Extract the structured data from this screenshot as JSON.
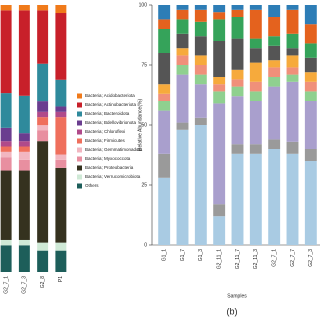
{
  "chart_data": [
    {
      "type": "stacked_bar",
      "categories": [
        "G2_7_1",
        "G2_7_3",
        "G2_8",
        "P1"
      ],
      "ylim": [
        0,
        100
      ],
      "series": [
        {
          "name": "Others",
          "color": "#1d5e5a",
          "values": [
            10,
            10,
            8,
            8
          ]
        },
        {
          "name": "Bacteria; Verrucomicrobiota",
          "color": "#cfe9d6",
          "values": [
            2,
            2,
            3,
            3
          ]
        },
        {
          "name": "Bacteria; Proteobacteria",
          "color": "#35321f",
          "values": [
            26,
            26,
            38,
            28
          ]
        },
        {
          "name": "Bacteria; Myxococcota",
          "color": "#e88fa0",
          "values": [
            5,
            4,
            4,
            3
          ]
        },
        {
          "name": "Bacteria; Gemmatimonadota",
          "color": "#f2b6c0",
          "values": [
            2,
            3,
            2,
            2
          ]
        },
        {
          "name": "Bacteria; Firmicutes",
          "color": "#ef6f5c",
          "values": [
            2,
            2,
            3,
            14
          ]
        },
        {
          "name": "Bacteria; Chloroflexi",
          "color": "#b04a8a",
          "values": [
            2,
            2,
            2,
            2
          ]
        },
        {
          "name": "Bacteria; Bdellovibrionota",
          "color": "#6a3d8f",
          "values": [
            5,
            3,
            4,
            2
          ]
        },
        {
          "name": "Bacteria; Bacteroidota",
          "color": "#2f8a9c",
          "values": [
            13,
            14,
            14,
            10
          ]
        },
        {
          "name": "Bacteria; Actinobacteriota",
          "color": "#c8202a",
          "values": [
            31,
            32,
            20,
            25
          ]
        },
        {
          "name": "Bacteria; Acidobacteriota",
          "color": "#f07a1a",
          "values": [
            2,
            2,
            2,
            3
          ]
        }
      ]
    },
    {
      "type": "stacked_bar",
      "y_label": "Relative Abundance(%)",
      "x_label": "Samples",
      "caption": "(b)",
      "categories": [
        "G1_1",
        "G1_7",
        "G1_3",
        "G2_11_1",
        "G2_11_7",
        "G2_11_3",
        "G2_7_1",
        "G2_7_7",
        "G2_7_3"
      ],
      "ylim": [
        0,
        100
      ],
      "yticks": [
        0,
        25,
        50,
        75,
        100
      ],
      "series": [
        {
          "color": "#a9cbe3",
          "values": [
            28,
            48,
            50,
            12,
            38,
            38,
            40,
            38,
            35
          ]
        },
        {
          "color": "#9a9a9a",
          "values": [
            10,
            3,
            3,
            5,
            4,
            4,
            4,
            5,
            5
          ]
        },
        {
          "color": "#a99fcd",
          "values": [
            18,
            20,
            14,
            42,
            20,
            18,
            22,
            25,
            20
          ]
        },
        {
          "color": "#8fd08f",
          "values": [
            4,
            4,
            4,
            5,
            4,
            4,
            4,
            3,
            4
          ]
        },
        {
          "color": "#f0907a",
          "values": [
            3,
            4,
            4,
            3,
            3,
            4,
            4,
            3,
            4
          ]
        },
        {
          "color": "#f6aa3c",
          "values": [
            4,
            3,
            4,
            3,
            4,
            8,
            3,
            5,
            4
          ]
        },
        {
          "color": "#555555",
          "values": [
            13,
            6,
            8,
            15,
            13,
            6,
            6,
            3,
            6
          ]
        },
        {
          "color": "#35a35a",
          "values": [
            10,
            6,
            6,
            9,
            9,
            4,
            4,
            6,
            6
          ]
        },
        {
          "color": "#e4621e",
          "values": [
            4,
            4,
            5,
            3,
            3,
            12,
            8,
            10,
            8
          ]
        },
        {
          "color": "#2d7db6",
          "values": [
            6,
            2,
            2,
            3,
            2,
            2,
            5,
            2,
            8
          ]
        }
      ]
    }
  ]
}
